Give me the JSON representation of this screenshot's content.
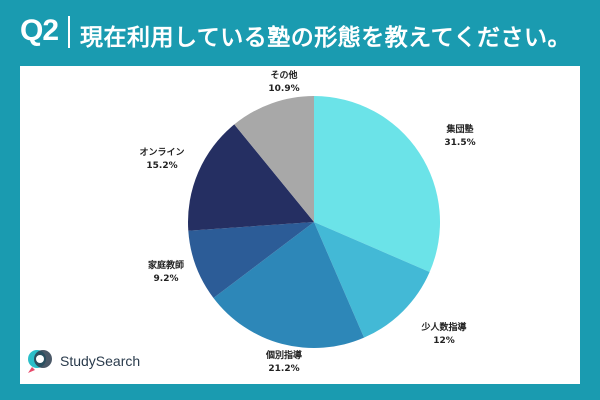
{
  "header": {
    "question": "Q2",
    "title": "現在利用している塾の形態を教えてください。"
  },
  "brand": {
    "name": "StudySearch"
  },
  "colors": {
    "background": "#1a9bb0",
    "panel": "#ffffff"
  },
  "chart_data": {
    "type": "pie",
    "title": "",
    "slices": [
      {
        "label": "集団塾",
        "value": 31.5,
        "value_label": "31.5%",
        "color": "#6be3e8"
      },
      {
        "label": "少人数指導",
        "value": 12,
        "value_label": "12%",
        "color": "#43b9d6"
      },
      {
        "label": "個別指導",
        "value": 21.2,
        "value_label": "21.2%",
        "color": "#2d87b8"
      },
      {
        "label": "家庭教師",
        "value": 9.2,
        "value_label": "9.2%",
        "color": "#2c5c97"
      },
      {
        "label": "オンライン",
        "value": 15.2,
        "value_label": "15.2%",
        "color": "#252f62"
      },
      {
        "label": "その他",
        "value": 10.9,
        "value_label": "10.9%",
        "color": "#a8a8a8"
      }
    ],
    "start_angle": "top",
    "direction": "clockwise"
  }
}
